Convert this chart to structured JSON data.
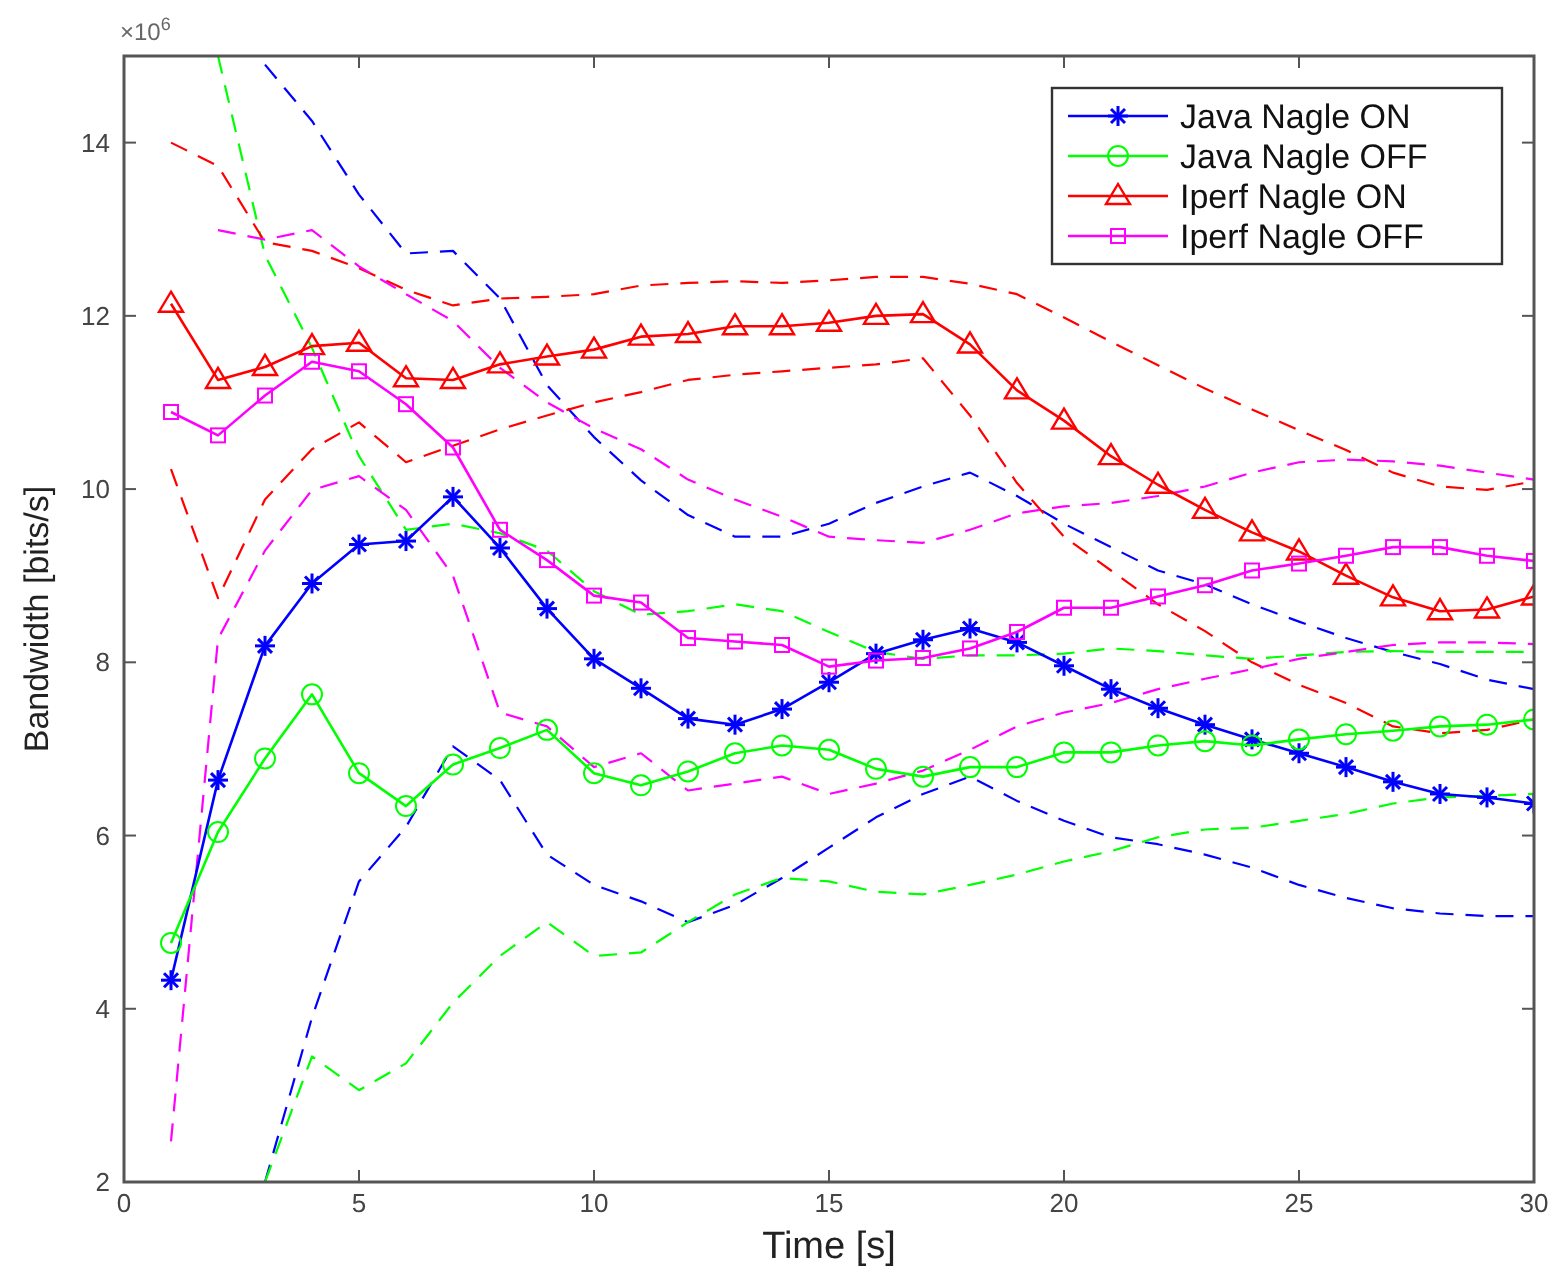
{
  "chart_data": {
    "type": "line",
    "xlabel": "Time [s]",
    "ylabel": "Bandwidth [bits/s]",
    "annotations": [
      "×10$^{6}$"
    ],
    "x": [
      1,
      2,
      3,
      4,
      5,
      6,
      7,
      8,
      9,
      10,
      11,
      12,
      13,
      14,
      15,
      16,
      17,
      18,
      19,
      20,
      21,
      22,
      23,
      24,
      25,
      26,
      27,
      28,
      29,
      30
    ],
    "xlim": [
      0,
      30
    ],
    "xticks": [
      0,
      5,
      10,
      15,
      20,
      25,
      30
    ],
    "ylim": [
      2,
      15
    ],
    "yticks": [
      2,
      4,
      6,
      8,
      10,
      12,
      14
    ],
    "grid": false,
    "legend": "top right",
    "line_style": "solid",
    "series": [
      {
        "color": "#0000ff",
        "line_style": "dashed",
        "marker": "none",
        "values": [
          null,
          null,
          14.9,
          14.25,
          13.4,
          12.72,
          12.75,
          12.2,
          11.2,
          10.6,
          10.1,
          9.7,
          9.45,
          9.45,
          9.6,
          9.84,
          10.03,
          10.19,
          9.92,
          9.6,
          9.33,
          9.06,
          8.9,
          8.67,
          8.47,
          8.28,
          8.12,
          7.98,
          7.8,
          7.69
        ]
      },
      {
        "color": "#0000ff",
        "line_style": "dashed",
        "marker": "none",
        "values": [
          null,
          null,
          2.0,
          3.9,
          5.47,
          6.1,
          7.03,
          6.64,
          5.78,
          5.43,
          5.24,
          5.0,
          5.2,
          5.51,
          5.86,
          6.21,
          6.48,
          6.68,
          6.4,
          6.17,
          5.98,
          5.9,
          5.78,
          5.63,
          5.43,
          5.28,
          5.16,
          5.1,
          5.07,
          5.07
        ]
      },
      {
        "color": "#00ff00",
        "line_style": "dashed",
        "marker": "none",
        "values": [
          null,
          15.0,
          12.7,
          11.63,
          10.38,
          9.53,
          9.6,
          9.49,
          9.29,
          8.82,
          8.55,
          8.59,
          8.67,
          8.59,
          8.35,
          8.12,
          8.04,
          8.08,
          8.08,
          8.1,
          8.16,
          8.13,
          8.08,
          8.04,
          8.08,
          8.12,
          8.13,
          8.12,
          8.12,
          8.12
        ]
      },
      {
        "color": "#00ff00",
        "line_style": "dashed",
        "marker": "none",
        "values": [
          null,
          null,
          2.0,
          3.45,
          3.06,
          3.37,
          4.07,
          4.61,
          5.0,
          4.61,
          4.65,
          5.0,
          5.32,
          5.51,
          5.47,
          5.35,
          5.32,
          5.43,
          5.55,
          5.7,
          5.82,
          5.98,
          6.07,
          6.09,
          6.17,
          6.25,
          6.37,
          6.44,
          6.46,
          6.48
        ]
      },
      {
        "color": "#ff0000",
        "line_style": "dashed",
        "marker": "none",
        "values": [
          14.0,
          13.73,
          12.85,
          12.75,
          12.55,
          12.3,
          12.12,
          12.2,
          12.22,
          12.25,
          12.35,
          12.38,
          12.4,
          12.38,
          12.41,
          12.45,
          12.45,
          12.37,
          12.25,
          11.98,
          11.7,
          11.43,
          11.16,
          10.92,
          10.68,
          10.45,
          10.19,
          10.03,
          9.99,
          10.09
        ]
      },
      {
        "color": "#ff0000",
        "line_style": "dashed",
        "marker": "none",
        "values": [
          10.23,
          8.74,
          9.88,
          10.46,
          10.77,
          10.31,
          10.5,
          10.69,
          10.85,
          11.0,
          11.12,
          11.26,
          11.32,
          11.36,
          11.4,
          11.44,
          11.51,
          10.85,
          10.07,
          9.45,
          9.06,
          8.67,
          8.36,
          8.0,
          7.74,
          7.53,
          7.26,
          7.18,
          7.22,
          7.34
        ]
      },
      {
        "color": "#ff00ff",
        "line_style": "dashed",
        "marker": "none",
        "values": [
          null,
          12.99,
          12.88,
          12.99,
          12.57,
          12.25,
          11.94,
          11.4,
          11.0,
          10.7,
          10.46,
          10.11,
          9.88,
          9.68,
          9.45,
          9.41,
          9.38,
          9.53,
          9.72,
          9.8,
          9.84,
          9.92,
          10.03,
          10.19,
          10.31,
          10.34,
          10.32,
          10.27,
          10.19,
          10.11
        ]
      },
      {
        "color": "#ff00ff",
        "line_style": "dashed",
        "marker": "none",
        "values": [
          2.47,
          8.27,
          9.29,
          9.99,
          10.15,
          9.76,
          9.0,
          7.42,
          7.26,
          6.79,
          6.95,
          6.52,
          6.6,
          6.68,
          6.48,
          6.6,
          6.75,
          6.99,
          7.26,
          7.42,
          7.53,
          7.69,
          7.81,
          7.92,
          8.04,
          8.12,
          8.2,
          8.23,
          8.23,
          8.21
        ]
      },
      {
        "name": "Java Nagle ON",
        "color": "#0000ff",
        "marker": "cross",
        "values": [
          4.33,
          6.64,
          8.19,
          8.91,
          9.36,
          9.4,
          9.91,
          9.32,
          8.62,
          8.04,
          7.7,
          7.35,
          7.28,
          7.46,
          7.77,
          8.1,
          8.26,
          8.39,
          8.23,
          7.96,
          7.69,
          7.47,
          7.28,
          7.11,
          6.95,
          6.79,
          6.62,
          6.48,
          6.44,
          6.37
        ]
      },
      {
        "name": "Java Nagle OFF",
        "color": "#00ff00",
        "marker": "circle",
        "values": [
          4.76,
          6.04,
          6.89,
          7.63,
          6.72,
          6.34,
          6.82,
          7.01,
          7.22,
          6.72,
          6.58,
          6.74,
          6.95,
          7.04,
          6.99,
          6.77,
          6.68,
          6.79,
          6.79,
          6.96,
          6.96,
          7.04,
          7.09,
          7.04,
          7.11,
          7.17,
          7.21,
          7.26,
          7.28,
          7.34
        ]
      },
      {
        "name": "Iperf Nagle ON",
        "color": "#ff0000",
        "marker": "triangle",
        "values": [
          12.14,
          11.26,
          11.41,
          11.65,
          11.69,
          11.28,
          11.26,
          11.44,
          11.53,
          11.61,
          11.76,
          11.79,
          11.88,
          11.88,
          11.92,
          12.0,
          12.02,
          11.67,
          11.14,
          10.79,
          10.38,
          10.05,
          9.76,
          9.5,
          9.28,
          9.0,
          8.75,
          8.59,
          8.61,
          8.76
        ]
      },
      {
        "name": "Iperf Nagle OFF",
        "color": "#ff00ff",
        "marker": "square",
        "values": [
          10.89,
          10.62,
          11.08,
          11.47,
          11.36,
          10.98,
          10.48,
          9.53,
          9.18,
          8.77,
          8.69,
          8.28,
          8.24,
          8.2,
          7.95,
          8.02,
          8.05,
          8.16,
          8.35,
          8.63,
          8.63,
          8.76,
          8.89,
          9.06,
          9.14,
          9.23,
          9.33,
          9.33,
          9.23,
          9.17
        ]
      }
    ]
  }
}
